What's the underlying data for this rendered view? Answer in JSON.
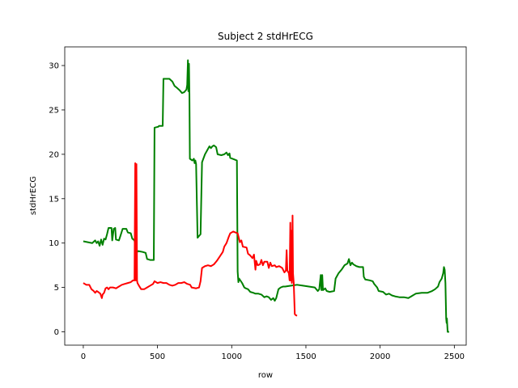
{
  "chart_data": {
    "type": "line",
    "title": "Subject 2 stdHrECG",
    "xlabel": "row",
    "ylabel": "stdHrECG",
    "xlim": [
      -125,
      2580
    ],
    "ylim": [
      -1.5,
      32.1
    ],
    "xticks": [
      0,
      500,
      1000,
      1500,
      2000,
      2500
    ],
    "yticks": [
      0,
      5,
      10,
      15,
      20,
      25,
      30
    ],
    "grid": false,
    "series": [
      {
        "color": "#008000",
        "points": [
          [
            0,
            10.2
          ],
          [
            30,
            10.1
          ],
          [
            60,
            10.0
          ],
          [
            80,
            10.3
          ],
          [
            90,
            10.0
          ],
          [
            100,
            10.2
          ],
          [
            110,
            9.7
          ],
          [
            120,
            10.4
          ],
          [
            130,
            9.8
          ],
          [
            140,
            10.5
          ],
          [
            150,
            10.4
          ],
          [
            160,
            11.0
          ],
          [
            170,
            11.7
          ],
          [
            190,
            11.7
          ],
          [
            195,
            10.3
          ],
          [
            205,
            11.6
          ],
          [
            215,
            11.7
          ],
          [
            220,
            10.4
          ],
          [
            240,
            10.3
          ],
          [
            250,
            10.8
          ],
          [
            265,
            11.6
          ],
          [
            290,
            11.6
          ],
          [
            300,
            11.2
          ],
          [
            320,
            11.1
          ],
          [
            330,
            10.5
          ],
          [
            345,
            10.3
          ],
          [
            355,
            8.9
          ],
          [
            370,
            9.1
          ],
          [
            400,
            9.0
          ],
          [
            420,
            8.9
          ],
          [
            430,
            8.2
          ],
          [
            450,
            8.1
          ],
          [
            475,
            8.1
          ],
          [
            480,
            23.0
          ],
          [
            505,
            23.1
          ],
          [
            510,
            23.2
          ],
          [
            535,
            23.2
          ],
          [
            540,
            28.5
          ],
          [
            580,
            28.5
          ],
          [
            600,
            28.2
          ],
          [
            615,
            27.7
          ],
          [
            630,
            27.5
          ],
          [
            650,
            27.2
          ],
          [
            665,
            26.9
          ],
          [
            680,
            27.0
          ],
          [
            695,
            27.3
          ],
          [
            700,
            27.8
          ],
          [
            705,
            30.6
          ],
          [
            708,
            27.1
          ],
          [
            712,
            30.2
          ],
          [
            715,
            26.9
          ],
          [
            718,
            19.5
          ],
          [
            735,
            19.3
          ],
          [
            745,
            19.5
          ],
          [
            750,
            19.0
          ],
          [
            755,
            19.3
          ],
          [
            760,
            18.9
          ],
          [
            770,
            10.6
          ],
          [
            780,
            10.8
          ],
          [
            790,
            11.0
          ],
          [
            800,
            19.1
          ],
          [
            820,
            20.0
          ],
          [
            840,
            20.6
          ],
          [
            850,
            20.9
          ],
          [
            860,
            20.7
          ],
          [
            870,
            20.9
          ],
          [
            880,
            21.0
          ],
          [
            895,
            20.8
          ],
          [
            905,
            20.0
          ],
          [
            930,
            19.9
          ],
          [
            950,
            20.0
          ],
          [
            965,
            20.2
          ],
          [
            975,
            19.9
          ],
          [
            985,
            20.1
          ],
          [
            990,
            19.6
          ],
          [
            1020,
            19.4
          ],
          [
            1035,
            19.3
          ],
          [
            1040,
            6.8
          ],
          [
            1045,
            5.6
          ],
          [
            1050,
            6.0
          ],
          [
            1070,
            5.5
          ],
          [
            1085,
            5.0
          ],
          [
            1095,
            4.9
          ],
          [
            1110,
            4.8
          ],
          [
            1125,
            4.5
          ],
          [
            1145,
            4.4
          ],
          [
            1160,
            4.3
          ],
          [
            1180,
            4.3
          ],
          [
            1200,
            4.2
          ],
          [
            1220,
            3.9
          ],
          [
            1235,
            4.0
          ],
          [
            1250,
            3.9
          ],
          [
            1265,
            3.6
          ],
          [
            1280,
            3.8
          ],
          [
            1290,
            3.5
          ],
          [
            1300,
            3.8
          ],
          [
            1315,
            4.8
          ],
          [
            1330,
            5.0
          ],
          [
            1345,
            5.1
          ],
          [
            1360,
            5.1
          ],
          [
            1400,
            5.2
          ],
          [
            1440,
            5.3
          ],
          [
            1480,
            5.2
          ],
          [
            1520,
            5.1
          ],
          [
            1560,
            5.0
          ],
          [
            1580,
            4.6
          ],
          [
            1590,
            4.8
          ],
          [
            1600,
            6.4
          ],
          [
            1605,
            4.7
          ],
          [
            1610,
            6.4
          ],
          [
            1615,
            4.7
          ],
          [
            1630,
            4.9
          ],
          [
            1640,
            4.6
          ],
          [
            1660,
            4.5
          ],
          [
            1690,
            4.6
          ],
          [
            1700,
            6.0
          ],
          [
            1720,
            6.6
          ],
          [
            1740,
            7.0
          ],
          [
            1760,
            7.5
          ],
          [
            1780,
            7.7
          ],
          [
            1790,
            8.2
          ],
          [
            1800,
            7.5
          ],
          [
            1810,
            7.8
          ],
          [
            1820,
            7.6
          ],
          [
            1840,
            7.4
          ],
          [
            1860,
            7.3
          ],
          [
            1885,
            7.3
          ],
          [
            1890,
            6.2
          ],
          [
            1900,
            5.9
          ],
          [
            1930,
            5.8
          ],
          [
            1950,
            5.7
          ],
          [
            1960,
            5.4
          ],
          [
            1980,
            5.0
          ],
          [
            1990,
            4.6
          ],
          [
            2020,
            4.5
          ],
          [
            2040,
            4.2
          ],
          [
            2060,
            4.3
          ],
          [
            2080,
            4.1
          ],
          [
            2100,
            4.0
          ],
          [
            2130,
            3.9
          ],
          [
            2160,
            3.9
          ],
          [
            2190,
            3.8
          ],
          [
            2210,
            4.0
          ],
          [
            2240,
            4.3
          ],
          [
            2280,
            4.4
          ],
          [
            2320,
            4.4
          ],
          [
            2350,
            4.6
          ],
          [
            2370,
            4.8
          ],
          [
            2390,
            5.1
          ],
          [
            2400,
            5.6
          ],
          [
            2415,
            6.0
          ],
          [
            2425,
            6.6
          ],
          [
            2430,
            7.3
          ],
          [
            2435,
            7.0
          ],
          [
            2440,
            5.5
          ],
          [
            2445,
            1.5
          ],
          [
            2448,
            1.0
          ],
          [
            2450,
            1.5
          ],
          [
            2455,
            0.0
          ],
          [
            2465,
            0.0
          ]
        ]
      },
      {
        "color": "#ff0000",
        "points": [
          [
            0,
            5.5
          ],
          [
            20,
            5.3
          ],
          [
            40,
            5.3
          ],
          [
            55,
            4.8
          ],
          [
            70,
            4.6
          ],
          [
            80,
            4.4
          ],
          [
            90,
            4.6
          ],
          [
            100,
            4.5
          ],
          [
            115,
            4.3
          ],
          [
            125,
            3.8
          ],
          [
            130,
            4.2
          ],
          [
            140,
            4.4
          ],
          [
            150,
            4.9
          ],
          [
            160,
            5.0
          ],
          [
            170,
            4.8
          ],
          [
            180,
            5.0
          ],
          [
            200,
            5.0
          ],
          [
            220,
            4.9
          ],
          [
            240,
            5.1
          ],
          [
            260,
            5.3
          ],
          [
            280,
            5.4
          ],
          [
            300,
            5.5
          ],
          [
            320,
            5.6
          ],
          [
            335,
            5.8
          ],
          [
            345,
            5.8
          ],
          [
            350,
            19.0
          ],
          [
            353,
            5.8
          ],
          [
            358,
            18.9
          ],
          [
            362,
            5.8
          ],
          [
            365,
            5.5
          ],
          [
            375,
            5.2
          ],
          [
            390,
            4.8
          ],
          [
            410,
            4.8
          ],
          [
            430,
            5.0
          ],
          [
            450,
            5.2
          ],
          [
            470,
            5.4
          ],
          [
            480,
            5.7
          ],
          [
            500,
            5.5
          ],
          [
            520,
            5.6
          ],
          [
            540,
            5.5
          ],
          [
            560,
            5.5
          ],
          [
            580,
            5.3
          ],
          [
            600,
            5.2
          ],
          [
            620,
            5.3
          ],
          [
            640,
            5.5
          ],
          [
            660,
            5.5
          ],
          [
            680,
            5.6
          ],
          [
            700,
            5.4
          ],
          [
            720,
            5.3
          ],
          [
            730,
            5.0
          ],
          [
            760,
            4.9
          ],
          [
            780,
            5.0
          ],
          [
            790,
            5.7
          ],
          [
            800,
            7.2
          ],
          [
            820,
            7.4
          ],
          [
            840,
            7.5
          ],
          [
            860,
            7.4
          ],
          [
            880,
            7.6
          ],
          [
            900,
            8.0
          ],
          [
            920,
            8.5
          ],
          [
            940,
            9.0
          ],
          [
            950,
            9.6
          ],
          [
            965,
            10.0
          ],
          [
            980,
            10.7
          ],
          [
            990,
            11.1
          ],
          [
            1010,
            11.3
          ],
          [
            1025,
            11.2
          ],
          [
            1040,
            11.1
          ],
          [
            1055,
            10.1
          ],
          [
            1065,
            10.3
          ],
          [
            1075,
            9.6
          ],
          [
            1100,
            9.5
          ],
          [
            1110,
            8.8
          ],
          [
            1125,
            8.6
          ],
          [
            1140,
            8.3
          ],
          [
            1150,
            8.7
          ],
          [
            1160,
            7.0
          ],
          [
            1165,
            8.0
          ],
          [
            1175,
            7.5
          ],
          [
            1190,
            7.6
          ],
          [
            1200,
            8.1
          ],
          [
            1210,
            7.5
          ],
          [
            1220,
            7.9
          ],
          [
            1240,
            7.9
          ],
          [
            1250,
            7.2
          ],
          [
            1260,
            7.8
          ],
          [
            1270,
            7.4
          ],
          [
            1290,
            7.5
          ],
          [
            1300,
            7.3
          ],
          [
            1320,
            7.4
          ],
          [
            1340,
            7.2
          ],
          [
            1355,
            6.7
          ],
          [
            1365,
            6.9
          ],
          [
            1370,
            9.2
          ],
          [
            1375,
            6.9
          ],
          [
            1385,
            6.6
          ],
          [
            1390,
            5.8
          ],
          [
            1395,
            12.3
          ],
          [
            1398,
            5.8
          ],
          [
            1402,
            11.4
          ],
          [
            1405,
            5.5
          ],
          [
            1410,
            13.1
          ],
          [
            1413,
            6.6
          ],
          [
            1418,
            5.5
          ],
          [
            1425,
            2.0
          ],
          [
            1430,
            1.9
          ],
          [
            1440,
            1.8
          ]
        ]
      }
    ]
  }
}
